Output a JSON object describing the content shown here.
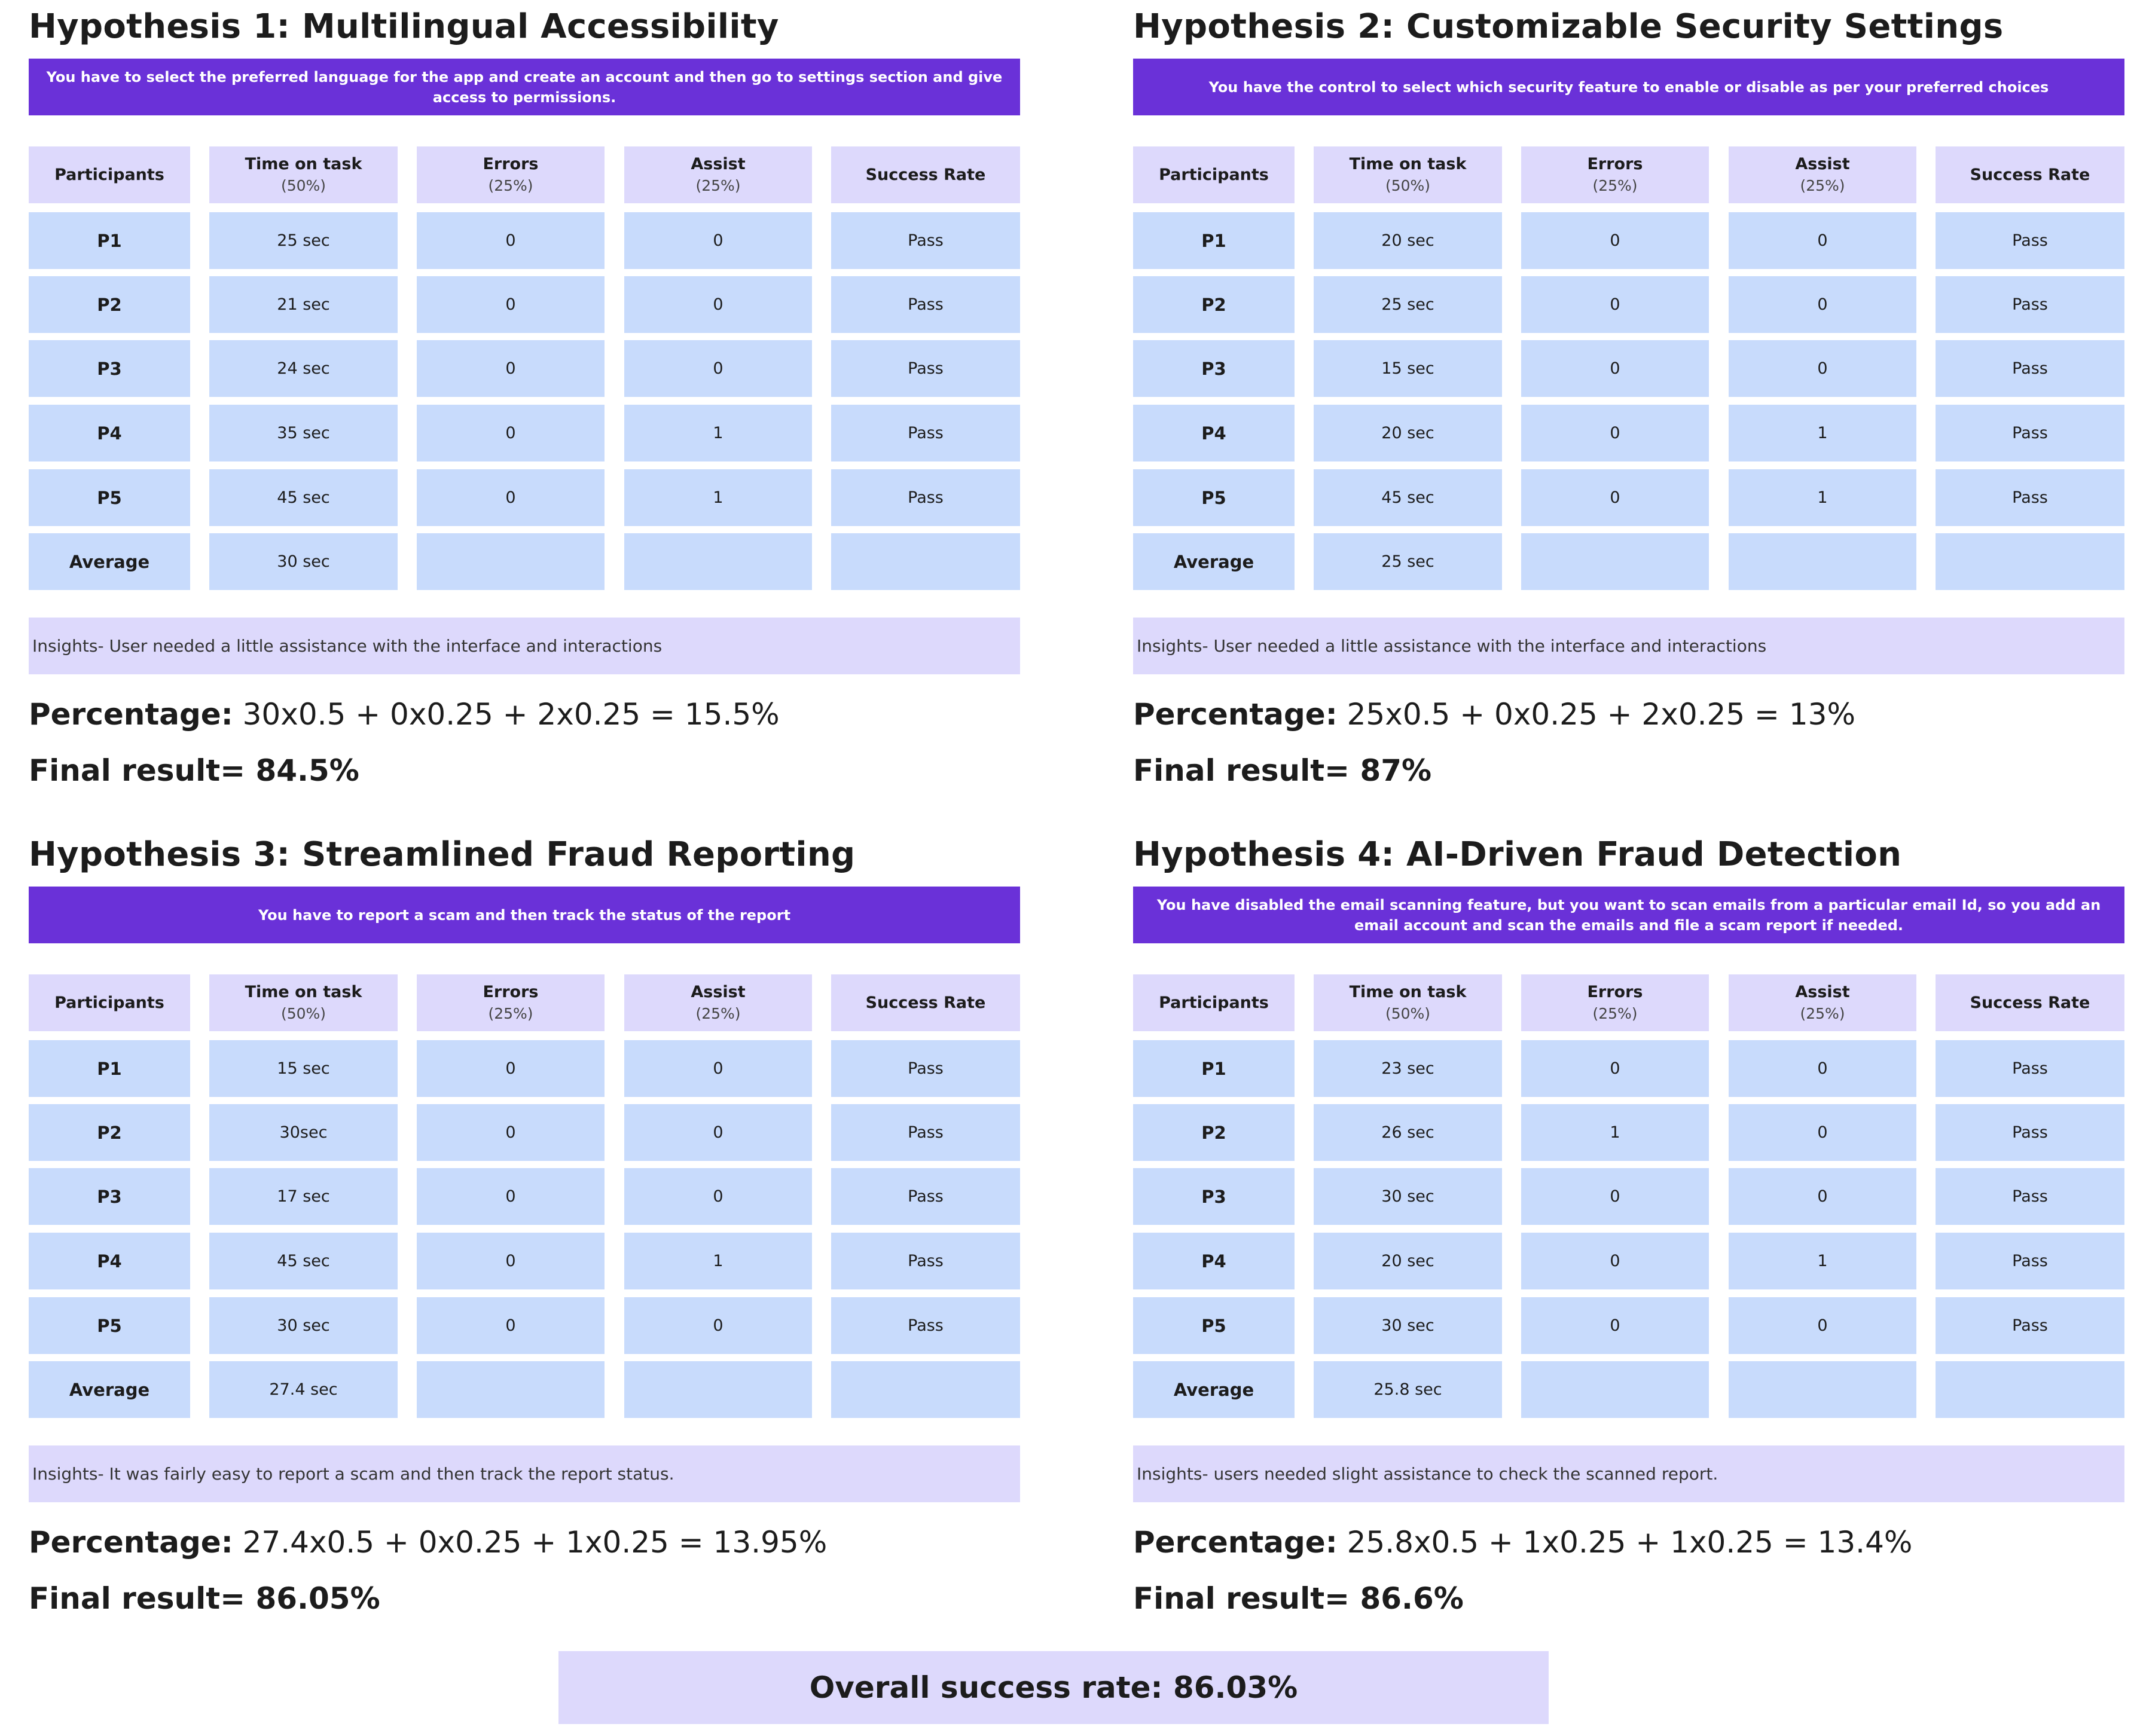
{
  "columns": [
    {
      "label": "Participants",
      "sub": ""
    },
    {
      "label": "Time on task",
      "sub": "(50%)"
    },
    {
      "label": "Errors",
      "sub": "(25%)"
    },
    {
      "label": "Assist",
      "sub": "(25%)"
    },
    {
      "label": "Success Rate",
      "sub": ""
    }
  ],
  "hypotheses": [
    {
      "title": "Hypothesis 1: Multilingual Accessibility",
      "task": "You have to select the preferred language for the app and create an account and then go to settings section and give access to permissions.",
      "rows": [
        [
          "P1",
          "25 sec",
          "0",
          "0",
          "Pass"
        ],
        [
          "P2",
          "21 sec",
          "0",
          "0",
          "Pass"
        ],
        [
          "P3",
          "24 sec",
          "0",
          "0",
          "Pass"
        ],
        [
          "P4",
          "35 sec",
          "0",
          "1",
          "Pass"
        ],
        [
          "P5",
          "45 sec",
          "0",
          "1",
          "Pass"
        ],
        [
          "Average",
          "30 sec",
          "",
          "",
          ""
        ]
      ],
      "insights": "Insights- User needed a little assistance with the interface and interactions",
      "percentage_label": "Percentage:",
      "percentage_formula": "30x0.5 + 0x0.25 + 2x0.25 = 15.5%",
      "final_result": "Final result= 84.5%"
    },
    {
      "title": "Hypothesis 2: Customizable Security Settings",
      "task": "You have the control to select which security feature to enable or disable as per your preferred choices",
      "rows": [
        [
          "P1",
          "20 sec",
          "0",
          "0",
          "Pass"
        ],
        [
          "P2",
          "25 sec",
          "0",
          "0",
          "Pass"
        ],
        [
          "P3",
          "15 sec",
          "0",
          "0",
          "Pass"
        ],
        [
          "P4",
          "20 sec",
          "0",
          "1",
          "Pass"
        ],
        [
          "P5",
          "45 sec",
          "0",
          "1",
          "Pass"
        ],
        [
          "Average",
          "25 sec",
          "",
          "",
          ""
        ]
      ],
      "insights": "Insights- User needed a little assistance with the interface and interactions",
      "percentage_label": "Percentage:",
      "percentage_formula": "25x0.5 + 0x0.25 + 2x0.25 = 13%",
      "final_result": "Final result= 87%"
    },
    {
      "title": "Hypothesis 3: Streamlined Fraud Reporting",
      "task": "You have to report a scam and then track the status of the report",
      "rows": [
        [
          "P1",
          "15 sec",
          "0",
          "0",
          "Pass"
        ],
        [
          "P2",
          "30sec",
          "0",
          "0",
          "Pass"
        ],
        [
          "P3",
          "17 sec",
          "0",
          "0",
          "Pass"
        ],
        [
          "P4",
          "45 sec",
          "0",
          "1",
          "Pass"
        ],
        [
          "P5",
          "30 sec",
          "0",
          "0",
          "Pass"
        ],
        [
          "Average",
          "27.4 sec",
          "",
          "",
          ""
        ]
      ],
      "insights": "Insights- It was fairly easy to report a scam and then track the report status.",
      "percentage_label": "Percentage:",
      "percentage_formula": "27.4x0.5 + 0x0.25 + 1x0.25 = 13.95%",
      "final_result": "Final result= 86.05%"
    },
    {
      "title": "Hypothesis 4: AI-Driven Fraud Detection",
      "task": "You have disabled the email scanning feature, but you want to scan emails from a particular email Id, so you add an email account and scan the emails and file a scam report if needed.",
      "rows": [
        [
          "P1",
          "23 sec",
          "0",
          "0",
          "Pass"
        ],
        [
          "P2",
          "26 sec",
          "1",
          "0",
          "Pass"
        ],
        [
          "P3",
          "30 sec",
          "0",
          "0",
          "Pass"
        ],
        [
          "P4",
          "20 sec",
          "0",
          "1",
          "Pass"
        ],
        [
          "P5",
          "30 sec",
          "0",
          "0",
          "Pass"
        ],
        [
          "Average",
          "25.8 sec",
          "",
          "",
          ""
        ]
      ],
      "insights": "Insights- users needed slight assistance to check the scanned report.",
      "percentage_label": "Percentage:",
      "percentage_formula": "25.8x0.5 + 1x0.25 + 1x0.25 = 13.4%",
      "final_result": "Final result= 86.6%"
    }
  ],
  "overall": "Overall success rate: 86.03%",
  "colors": {
    "banner": "#6a31d8",
    "header_cell": "#ddd9fc",
    "data_cell": "#c8dbfc",
    "insights": "#ddd9fc"
  }
}
